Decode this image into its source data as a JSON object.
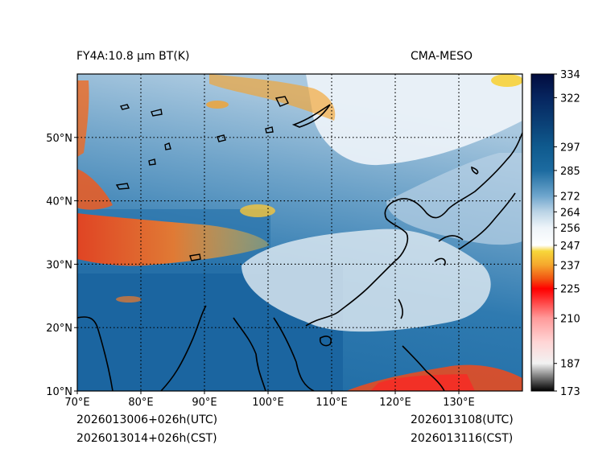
{
  "header": {
    "product": "FY4A:10.8 μm BT(K)",
    "source": "CMA-MESO"
  },
  "map": {
    "lon_range": [
      70,
      140
    ],
    "lat_range": [
      10,
      60
    ],
    "lon_ticks": [
      "70°E",
      "80°E",
      "90°E",
      "100°E",
      "110°E",
      "120°E",
      "130°E"
    ],
    "lat_ticks": [
      "10°N",
      "20°N",
      "30°N",
      "40°N",
      "50°N"
    ],
    "lon_values": [
      70,
      80,
      90,
      100,
      110,
      120,
      130
    ],
    "lat_values": [
      10,
      20,
      30,
      40,
      50
    ],
    "grid_lon": [
      80,
      90,
      100,
      110,
      120,
      130
    ],
    "grid_lat": [
      20,
      30,
      40,
      50
    ]
  },
  "colorbar": {
    "min": 173,
    "max": 334,
    "tick_labels": [
      "334",
      "322",
      "297",
      "285",
      "272",
      "264",
      "256",
      "247",
      "237",
      "225",
      "210",
      "187",
      "173"
    ],
    "tick_values": [
      334,
      322,
      297,
      285,
      272,
      264,
      256,
      247,
      237,
      225,
      210,
      187,
      173
    ],
    "stops": [
      {
        "v": 173,
        "c": "#000000"
      },
      {
        "v": 180,
        "c": "#777777"
      },
      {
        "v": 187,
        "c": "#f2f2f2"
      },
      {
        "v": 198,
        "c": "#ffd5d5"
      },
      {
        "v": 210,
        "c": "#ff9a9a"
      },
      {
        "v": 222,
        "c": "#ff1c1c"
      },
      {
        "v": 225,
        "c": "#ff0000"
      },
      {
        "v": 230,
        "c": "#f25512"
      },
      {
        "v": 237,
        "c": "#f5a72d"
      },
      {
        "v": 244,
        "c": "#f7d63a"
      },
      {
        "v": 247,
        "c": "#ffffff"
      },
      {
        "v": 256,
        "c": "#eef4f9"
      },
      {
        "v": 264,
        "c": "#bbd4e6"
      },
      {
        "v": 272,
        "c": "#6fa6cd"
      },
      {
        "v": 285,
        "c": "#1c6ba0"
      },
      {
        "v": 297,
        "c": "#0f5a8e"
      },
      {
        "v": 310,
        "c": "#0a3e74"
      },
      {
        "v": 322,
        "c": "#06255f"
      },
      {
        "v": 334,
        "c": "#020c3e"
      }
    ]
  },
  "footer": {
    "init_utc": "2026013006+026h(UTC)",
    "init_cst": "2026013014+026h(CST)",
    "valid_utc": "2026013108(UTC)",
    "valid_cst": "2026013116(CST)"
  }
}
